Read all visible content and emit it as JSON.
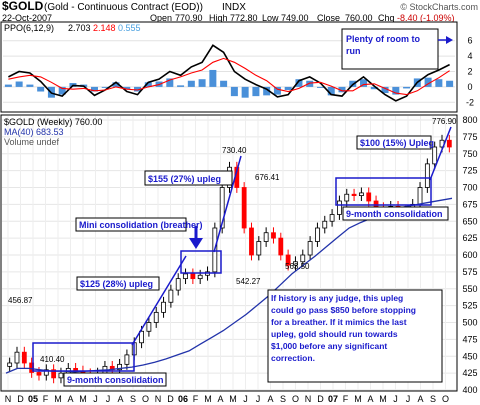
{
  "header": {
    "symbol": "$GOLD",
    "name": "(Gold - Continuous Contract (EOD))",
    "exchange": "INDX",
    "watermark": "© StockCharts.com",
    "date": "22-Oct-2007",
    "open_label": "Open",
    "open": "770.90",
    "high_label": "High",
    "high": "772.80",
    "low_label": "Low",
    "low": "749.00",
    "close_label": "Close",
    "close": "760.00",
    "chg_label": "Chg",
    "chg": "-8.40 (-1.09%)"
  },
  "ppo_panel": {
    "label": "PPO(6,12,9)",
    "v1": "2.703",
    "v2": "2.148",
    "v3": "0.555",
    "colors": {
      "line": "#000000",
      "signal": "#ff0000",
      "hist": "#4a90d9",
      "v3": "#4aa0e0"
    },
    "y_ticks": [
      "6",
      "4",
      "2",
      "0",
      "-2"
    ]
  },
  "price_panel": {
    "legend": [
      "$GOLD (Weekly) 760.00",
      "MA(40) 683.53",
      "Volume undef"
    ],
    "colors": {
      "ma": "#2233aa",
      "up": "#000000",
      "down": "#ff0000",
      "annot": "#1a1acc"
    }
  },
  "chart_data": [
    {
      "type": "line",
      "title": "PPO(6,12,9)",
      "ylim": [
        -3,
        7
      ],
      "y_ticks": [
        6,
        4,
        2,
        0,
        -2
      ],
      "series": [
        {
          "name": "PPO",
          "values": [
            1.3,
            2.0,
            1.8,
            0.7,
            -0.8,
            -1.2,
            0.2,
            0.1,
            -1.1,
            -0.4,
            0.6,
            -0.6,
            -1.0,
            0.6,
            1.0,
            2.0,
            1.5,
            2.6,
            3.2,
            5.4,
            4.5,
            2.0,
            1.0,
            0.3,
            -0.3,
            -1.3,
            -1.0,
            0.8,
            1.3,
            0.5,
            -1.0,
            -1.2,
            0.3,
            1.3,
            0.1,
            -1.0,
            -1.8,
            -1.2,
            0.6,
            1.6,
            2.2,
            2.9
          ]
        },
        {
          "name": "Signal",
          "values": [
            1.0,
            1.3,
            1.5,
            1.3,
            0.6,
            -0.2,
            -0.3,
            -0.2,
            -0.5,
            -0.4,
            0.0,
            -0.3,
            -0.4,
            0.0,
            0.3,
            0.9,
            1.3,
            1.8,
            2.2,
            3.2,
            3.7,
            3.2,
            2.4,
            1.5,
            0.8,
            -0.3,
            -0.6,
            -0.2,
            0.5,
            0.6,
            0.1,
            -0.5,
            -0.5,
            0.3,
            0.4,
            -0.2,
            -0.8,
            -1.0,
            -0.5,
            0.4,
            1.2,
            2.1
          ]
        }
      ],
      "annotation": "Plenty of room to run"
    },
    {
      "type": "candlestick",
      "title": "$GOLD (Weekly) 760.00",
      "x_ticks": [
        "N",
        "D",
        "05",
        "F",
        "M",
        "A",
        "M",
        "J",
        "J",
        "A",
        "S",
        "O",
        "N",
        "D",
        "06",
        "F",
        "M",
        "A",
        "M",
        "J",
        "J",
        "A",
        "S",
        "O",
        "N",
        "D",
        "07",
        "F",
        "M",
        "A",
        "M",
        "J",
        "J",
        "A",
        "S",
        "O"
      ],
      "ylim": [
        400,
        800
      ],
      "y_ticks": [
        400,
        425,
        450,
        475,
        500,
        525,
        550,
        575,
        600,
        625,
        650,
        675,
        700,
        725,
        750,
        775,
        800
      ],
      "close_series": [
        440,
        456,
        440,
        426,
        422,
        430,
        418,
        425,
        432,
        428,
        424,
        420,
        425,
        435,
        430,
        438,
        452,
        470,
        487,
        500,
        515,
        530,
        548,
        565,
        572,
        565,
        570,
        575,
        640,
        700,
        730,
        700,
        640,
        600,
        620,
        633,
        625,
        600,
        585,
        590,
        600,
        620,
        640,
        650,
        660,
        680,
        690,
        688,
        692,
        680,
        670,
        668,
        672,
        665,
        660,
        675,
        700,
        735,
        760,
        770,
        760
      ],
      "ma40_series": [
        425,
        432,
        432,
        430,
        428,
        428,
        427,
        428,
        429,
        430,
        432,
        434,
        437,
        441,
        446,
        452,
        458,
        468,
        478,
        488,
        500,
        512,
        526,
        540,
        556,
        572,
        585,
        598,
        612,
        626,
        640,
        648,
        655,
        662,
        668,
        672,
        675,
        678,
        681,
        684
      ],
      "labeled_values": [
        "456.87",
        "410.40",
        "730.40",
        "542.27",
        "676.41",
        "563.50",
        "776.90"
      ],
      "annotations": {
        "consol1": "9-month consolidation",
        "upleg125": "$125 (28%) upleg",
        "mini": "Mini consolidation (breather)",
        "upleg155": "$155 (27%) upleg",
        "consol2": "9-month consolidation",
        "upleg100": "$100 (15%) Upleg",
        "commentary": [
          "If history is any judge, this upleg",
          "could go pass $850 before stopping",
          "for a breather.  If it mimics the last",
          "upleg, gold should run towards",
          "$1,000 before any significant",
          "correction."
        ]
      }
    }
  ]
}
